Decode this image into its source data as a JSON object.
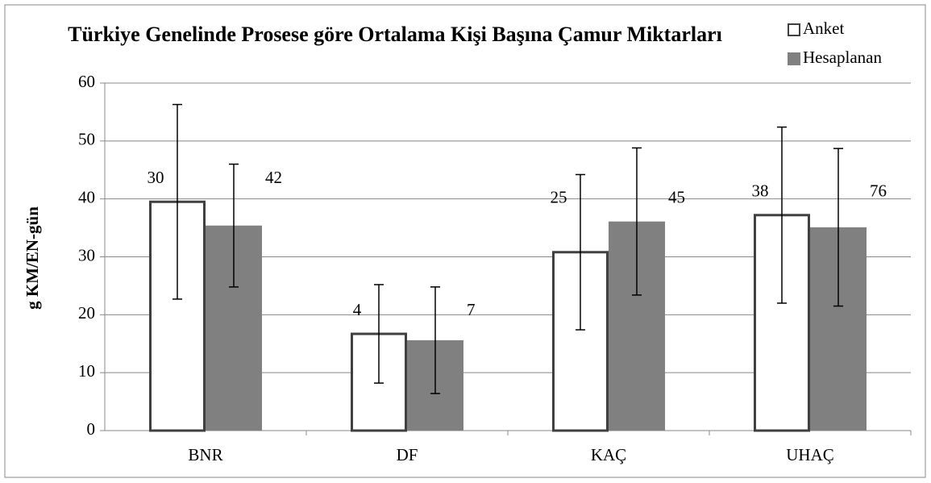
{
  "chart_data": {
    "type": "bar",
    "title": "Türkiye Genelinde Prosese göre Ortalama Kişi Başına Çamur Miktarları",
    "y_label": "g KM/EN-gün",
    "categories": [
      "BNR",
      "DF",
      "KAÇ",
      "UHAÇ"
    ],
    "series": [
      {
        "name": "Anket",
        "color": "#ffffff",
        "edge": "#404040",
        "values": [
          39.5,
          16.7,
          30.8,
          37.2
        ],
        "errors": [
          16.8,
          8.5,
          13.4,
          15.2
        ],
        "annotations": [
          30,
          4,
          25,
          38
        ]
      },
      {
        "name": "Hesaplanan",
        "color": "#808080",
        "edge": "#808080",
        "values": [
          35.4,
          15.6,
          36.1,
          35.1
        ],
        "errors": [
          10.6,
          9.2,
          12.7,
          13.6
        ],
        "annotations": [
          42,
          7,
          45,
          76
        ]
      }
    ],
    "ylim": [
      0,
      60
    ],
    "yticks": [
      0,
      10,
      20,
      30,
      40,
      50,
      60
    ],
    "grid": true,
    "legend": "top-right"
  }
}
